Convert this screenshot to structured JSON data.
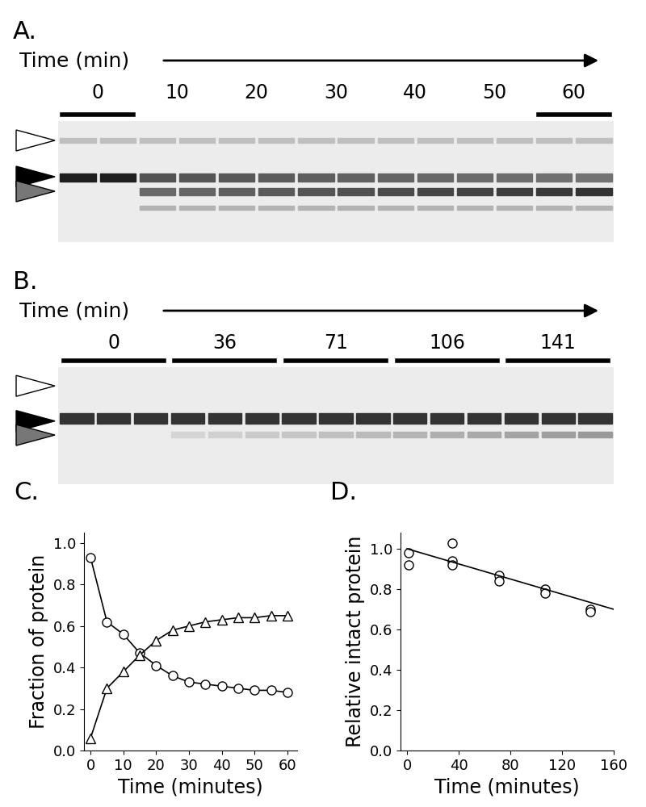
{
  "gels": [
    {
      "label": "A.",
      "axis_label": "Time (min)",
      "times": [
        0,
        10,
        20,
        30,
        40,
        50,
        60
      ]
    },
    {
      "label": "B.",
      "axis_label": "Time (min)",
      "times": [
        0,
        36,
        71,
        106,
        141
      ]
    }
  ],
  "chart_data": [
    {
      "type": "scatter",
      "title": "C.",
      "x_label": "Time (minutes)",
      "y_label": "Fraction of protein",
      "xlim": [
        -2,
        63
      ],
      "ylim": [
        0,
        1.05
      ],
      "xticks": [
        0,
        10,
        20,
        30,
        40,
        50,
        60
      ],
      "yticks": [
        0.0,
        0.2,
        0.4,
        0.6,
        0.8,
        1.0
      ],
      "series": [
        {
          "type": "line",
          "marker": "circle",
          "color": "#000000",
          "x": [
            0,
            5,
            10,
            15,
            20,
            25,
            30,
            35,
            40,
            45,
            50,
            55,
            60
          ],
          "values": [
            0.93,
            0.62,
            0.56,
            0.47,
            0.41,
            0.36,
            0.33,
            0.32,
            0.31,
            0.3,
            0.29,
            0.29,
            0.28
          ]
        },
        {
          "type": "line",
          "marker": "triangle",
          "color": "#000000",
          "x": [
            0,
            5,
            10,
            15,
            20,
            25,
            30,
            35,
            40,
            45,
            50,
            55,
            60
          ],
          "values": [
            0.06,
            0.3,
            0.38,
            0.46,
            0.53,
            0.58,
            0.6,
            0.62,
            0.63,
            0.64,
            0.64,
            0.65,
            0.65
          ]
        }
      ]
    },
    {
      "type": "scatter",
      "title": "D.",
      "x_label": "Time (minutes)",
      "y_label": "Relative intact protein",
      "xlim": [
        -5,
        160
      ],
      "ylim": [
        0,
        1.08
      ],
      "xticks": [
        0,
        40,
        80,
        120,
        160
      ],
      "yticks": [
        0.0,
        0.2,
        0.4,
        0.6,
        0.8,
        1.0
      ],
      "series": [
        {
          "type": "scatter",
          "marker": "circle",
          "color": "#000000",
          "x": [
            1,
            1,
            35,
            35,
            35,
            71,
            71,
            107,
            107,
            142,
            142
          ],
          "values": [
            0.98,
            0.92,
            1.03,
            0.94,
            0.92,
            0.87,
            0.84,
            0.8,
            0.78,
            0.7,
            0.69
          ]
        },
        {
          "type": "line",
          "marker": "none",
          "color": "#000000",
          "x": [
            0,
            160
          ],
          "values": [
            1.0,
            0.7
          ]
        }
      ]
    }
  ]
}
